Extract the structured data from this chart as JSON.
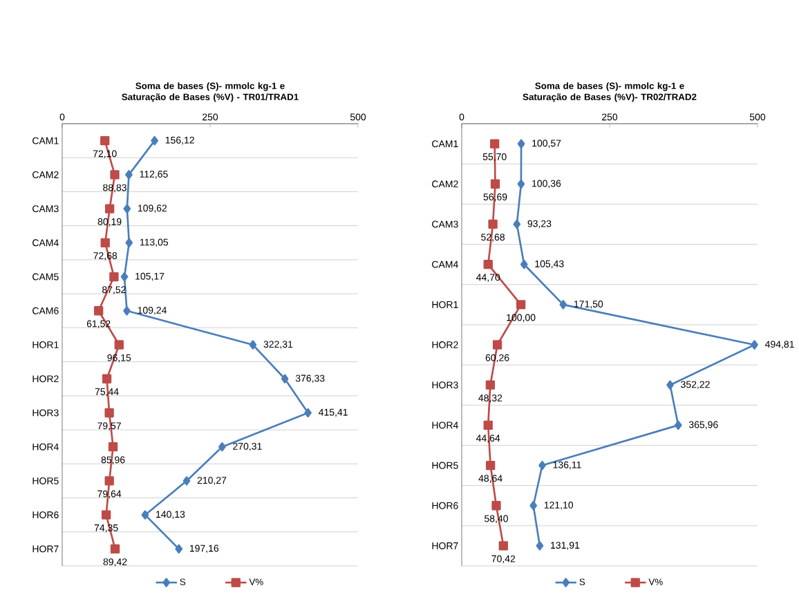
{
  "chart_data": [
    {
      "type": "line",
      "orientation": "horizontal",
      "title": "Soma de bases (S)- mmolc kg-1 e Saturação de Bases (%V) - TR01/TRAD1",
      "categories": [
        "CAM1",
        "CAM2",
        "CAM3",
        "CAM4",
        "CAM5",
        "CAM6",
        "HOR1",
        "HOR2",
        "HOR3",
        "HOR4",
        "HOR5",
        "HOR6",
        "HOR7"
      ],
      "xlim": [
        0,
        500
      ],
      "xticks": [
        0,
        250,
        500
      ],
      "grid": "y",
      "legend": "bottom",
      "series": [
        {
          "name": "S",
          "color": "#4a7ebb",
          "marker": "diamond",
          "values": [
            156.12,
            112.65,
            109.62,
            113.05,
            105.17,
            109.24,
            322.31,
            376.33,
            415.41,
            270.31,
            210.27,
            140.13,
            197.16
          ],
          "value_labels": [
            "156,12",
            "112,65",
            "109,62",
            "113,05",
            "105,17",
            "109,24",
            "322,31",
            "376,33",
            "415,41",
            "270,31",
            "210,27",
            "140,13",
            "197,16"
          ]
        },
        {
          "name": "V%",
          "color": "#be4b48",
          "marker": "square",
          "values": [
            72.1,
            88.83,
            80.19,
            72.68,
            87.52,
            61.52,
            96.15,
            75.44,
            79.57,
            85.96,
            79.64,
            74.35,
            89.42
          ],
          "value_labels": [
            "72,10",
            "88,83",
            "80,19",
            "72,68",
            "87,52",
            "61,52",
            "96,15",
            "75,44",
            "79,57",
            "85,96",
            "79,64",
            "74,35",
            "89,42"
          ]
        }
      ]
    },
    {
      "type": "line",
      "orientation": "horizontal",
      "title": "Soma de bases (S)- mmolc kg-1 e Saturação de Bases (%V)- TR02/TRAD2",
      "categories": [
        "CAM1",
        "CAM2",
        "CAM3",
        "CAM4",
        "HOR1",
        "HOR2",
        "HOR3",
        "HOR4",
        "HOR5",
        "HOR6",
        "HOR7"
      ],
      "xlim": [
        0,
        500
      ],
      "xticks": [
        0,
        250,
        500
      ],
      "grid": "y",
      "legend": "bottom",
      "series": [
        {
          "name": "S",
          "color": "#4a7ebb",
          "marker": "diamond",
          "values": [
            100.57,
            100.36,
            93.23,
            105.43,
            171.5,
            494.81,
            352.22,
            365.96,
            136.11,
            121.1,
            131.91
          ],
          "value_labels": [
            "100,57",
            "100,36",
            "93,23",
            "105,43",
            "171,50",
            "494,81",
            "352,22",
            "365,96",
            "136,11",
            "121,10",
            "131,91"
          ]
        },
        {
          "name": "V%",
          "color": "#be4b48",
          "marker": "square",
          "values": [
            55.7,
            56.69,
            52.68,
            44.7,
            100.0,
            60.26,
            48.32,
            44.64,
            48.64,
            58.4,
            70.42
          ],
          "value_labels": [
            "55,70",
            "56,69",
            "52,68",
            "44,70",
            "100,00",
            "60,26",
            "48,32",
            "44,64",
            "48,64",
            "58,40",
            "70,42"
          ]
        }
      ]
    }
  ]
}
